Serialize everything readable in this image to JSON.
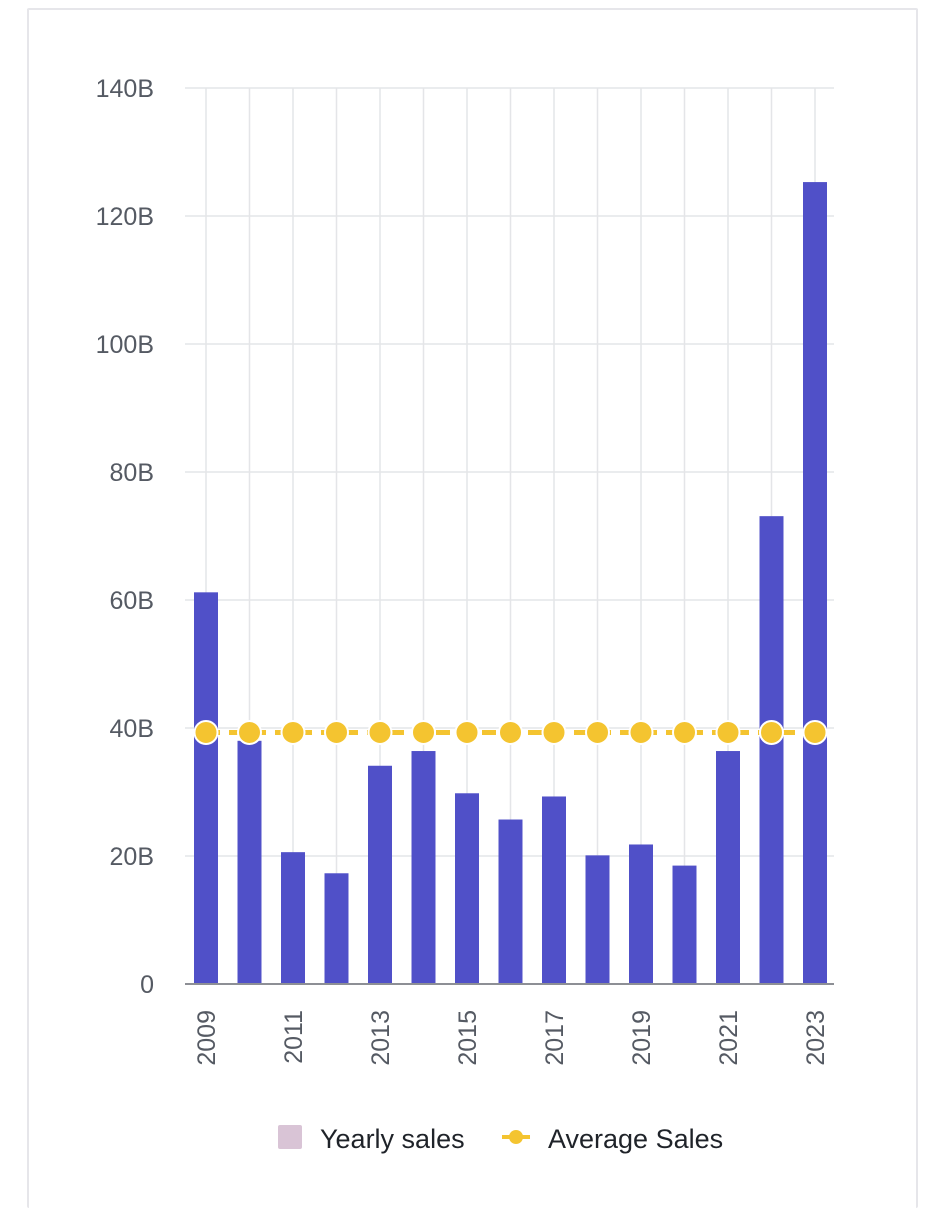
{
  "chart_data": {
    "type": "bar",
    "categories": [
      "2009",
      "2010",
      "2011",
      "2012",
      "2013",
      "2014",
      "2015",
      "2016",
      "2017",
      "2018",
      "2019",
      "2020",
      "2021",
      "2022",
      "2023"
    ],
    "x_tick_labels": [
      "2009",
      "2011",
      "2013",
      "2015",
      "2017",
      "2019",
      "2021",
      "2023"
    ],
    "y_tick_labels": [
      "0",
      "20B",
      "40B",
      "60B",
      "80B",
      "100B",
      "120B",
      "140B"
    ],
    "y_ticks": [
      0,
      20,
      40,
      60,
      80,
      100,
      120,
      140
    ],
    "ylim": [
      0,
      140
    ],
    "y_unit": "B",
    "grid": true,
    "legend_position": "bottom",
    "series": [
      {
        "name": "Yearly sales",
        "type": "bar",
        "color": "#5050c8",
        "legend_color": "#d9c4d6",
        "values": [
          61.2,
          38.0,
          20.6,
          17.3,
          34.1,
          36.4,
          29.8,
          25.7,
          29.3,
          20.1,
          21.8,
          18.5,
          36.4,
          73.1,
          125.3
        ]
      },
      {
        "name": "Average Sales",
        "type": "line",
        "style": "dashed",
        "color": "#f4c430",
        "values": [
          39.3,
          39.3,
          39.3,
          39.3,
          39.3,
          39.3,
          39.3,
          39.3,
          39.3,
          39.3,
          39.3,
          39.3,
          39.3,
          39.3,
          39.3
        ]
      }
    ]
  }
}
